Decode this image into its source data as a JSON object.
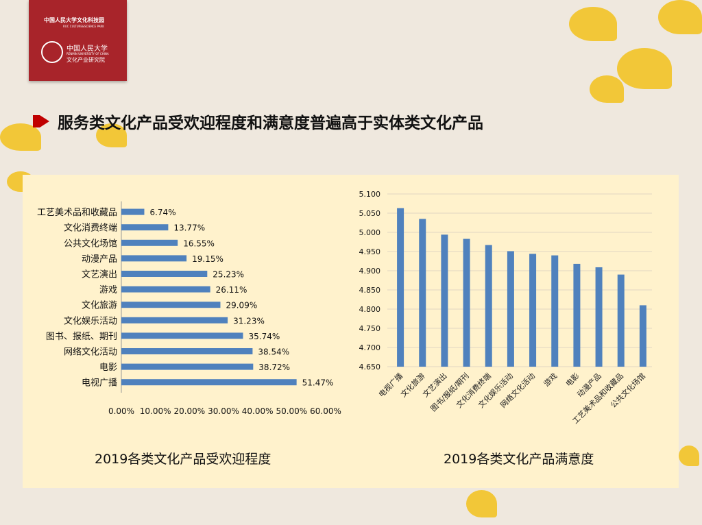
{
  "logo": {
    "park_name_cn": "中国人民大学文化科技园",
    "park_name_en": "RUC CULTURE&SCIENCE PARK",
    "university_cn": "中国人民大学",
    "university_en": "RENMIN UNIVERSITY OF CHINA",
    "institute": "文化产业研究院"
  },
  "slide_title": "服务类文化产品受欢迎程度和满意度普遍高于实体类文化产品",
  "colors": {
    "bar": "#4f81bd",
    "panel": "#fff2cc",
    "accent": "#c00000",
    "logo_bg": "#a8242a"
  },
  "chart_data": [
    {
      "type": "bar",
      "orientation": "horizontal",
      "title": "2019各类文化产品受欢迎程度",
      "categories": [
        "电视广播",
        "电影",
        "网络文化活动",
        "图书、报纸、期刊",
        "文化娱乐活动",
        "文化旅游",
        "游戏",
        "文艺演出",
        "动漫产品",
        "公共文化场馆",
        "文化消费终端",
        "工艺美术品和收藏品"
      ],
      "values": [
        51.47,
        38.72,
        38.54,
        35.74,
        31.23,
        29.09,
        26.11,
        25.23,
        19.15,
        16.55,
        13.77,
        6.74
      ],
      "value_labels": [
        "51.47%",
        "38.72%",
        "38.54%",
        "35.74%",
        "31.23%",
        "29.09%",
        "26.11%",
        "25.23%",
        "19.15%",
        "16.55%",
        "13.77%",
        "6.74%"
      ],
      "xlim": [
        0,
        60
      ],
      "x_ticks": [
        "0.00%",
        "10.00%",
        "20.00%",
        "30.00%",
        "40.00%",
        "50.00%",
        "60.00%"
      ],
      "grid": false
    },
    {
      "type": "bar",
      "title": "2019各类文化产品满意度",
      "categories": [
        "电视广播",
        "文化旅游",
        "文艺演出",
        "图书/报纸/期刊",
        "文化消费终端",
        "文化娱乐活动",
        "网络文化活动",
        "游戏",
        "电影",
        "动漫产品",
        "工艺美术品和收藏品",
        "公共文化场馆"
      ],
      "values": [
        5.063,
        5.035,
        4.994,
        4.983,
        4.967,
        4.951,
        4.944,
        4.94,
        4.918,
        4.909,
        4.89,
        4.81
      ],
      "ylim": [
        4.65,
        5.1
      ],
      "y_ticks": [
        "4.650",
        "4.700",
        "4.750",
        "4.800",
        "4.850",
        "4.900",
        "4.950",
        "5.000",
        "5.050",
        "5.100"
      ],
      "grid": true
    }
  ]
}
